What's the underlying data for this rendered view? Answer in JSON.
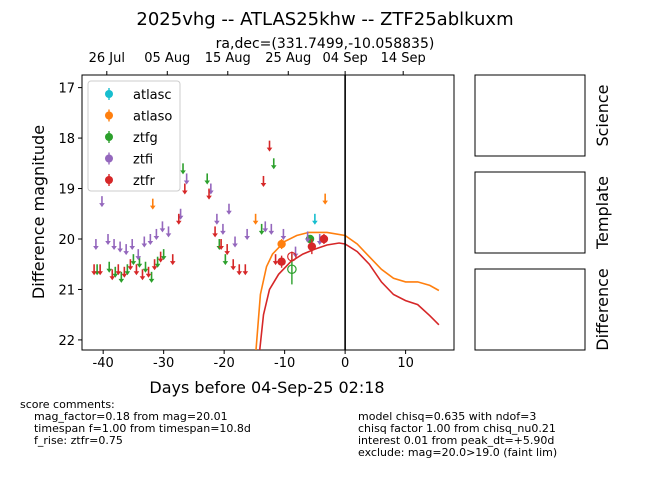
{
  "title": "2025vhg -- ATLAS25khw -- ZTF25ablkuxm",
  "subtitle": "ra,dec=(331.7499,-10.058835)",
  "colors": {
    "atlasc": "#17becf",
    "atlaso": "#ff7f0e",
    "ztfg": "#2ca02c",
    "ztfi": "#9467bd",
    "ztfr": "#d62728"
  },
  "chart_data": {
    "type": "scatter",
    "xlabel": "Days before 04-Sep-25 02:18",
    "ylabel": "Difference magnitude",
    "xlim": [
      -43.5,
      18
    ],
    "ylim": [
      22.2,
      16.75
    ],
    "y_inverted": true,
    "x_ticks": [
      -40,
      -30,
      -20,
      -10,
      0,
      10
    ],
    "y_ticks": [
      17,
      18,
      19,
      20,
      21,
      22
    ],
    "top_axis_ticks": [
      {
        "x": -39.4,
        "label": "26 Jul"
      },
      {
        "x": -29.4,
        "label": "05 Aug"
      },
      {
        "x": -19.4,
        "label": "15 Aug"
      },
      {
        "x": -9.4,
        "label": "25 Aug"
      },
      {
        "x": 0,
        "label": "04 Sep"
      },
      {
        "x": 9.6,
        "label": "14 Sep"
      }
    ],
    "reference_line_x": 0,
    "legend": [
      "atlasc",
      "atlaso",
      "ztfg",
      "ztfi",
      "ztfr"
    ],
    "legend_position": "upper-left",
    "series": [
      {
        "name": "atlasc",
        "upper_limits": [
          {
            "x": -5,
            "y": 19.6
          }
        ],
        "detections": []
      },
      {
        "name": "atlaso",
        "upper_limits": [
          {
            "x": -31.8,
            "y": 19.3
          },
          {
            "x": -14.8,
            "y": 19.6
          },
          {
            "x": -3.3,
            "y": 19.2
          }
        ],
        "detections": [
          {
            "x": -10.5,
            "y": 20.1,
            "err": 0.1
          }
        ]
      },
      {
        "name": "ztfg",
        "upper_limits": [
          {
            "x": -41,
            "y": 20.6
          },
          {
            "x": -39,
            "y": 20.55
          },
          {
            "x": -38,
            "y": 20.65
          },
          {
            "x": -37,
            "y": 20.75
          },
          {
            "x": -36,
            "y": 20.6
          },
          {
            "x": -35,
            "y": 20.4
          },
          {
            "x": -34,
            "y": 20.45
          },
          {
            "x": -33,
            "y": 20.55
          },
          {
            "x": -32,
            "y": 20.75
          },
          {
            "x": -31,
            "y": 20.45
          },
          {
            "x": -30,
            "y": 20.3
          },
          {
            "x": -26.8,
            "y": 18.6
          },
          {
            "x": -22.8,
            "y": 18.8
          },
          {
            "x": -20.8,
            "y": 20.1
          },
          {
            "x": -19.8,
            "y": 20.4
          },
          {
            "x": -13.8,
            "y": 19.8
          },
          {
            "x": -11.8,
            "y": 18.5
          }
        ],
        "detections": [
          {
            "x": -5.8,
            "y": 20.0,
            "err": 0.08
          }
        ],
        "open_markers": [
          {
            "x": -8.8,
            "y": 20.6,
            "err": 0.3
          }
        ]
      },
      {
        "name": "ztfi",
        "upper_limits": [
          {
            "x": -41.2,
            "y": 20.1
          },
          {
            "x": -40.2,
            "y": 19.25
          },
          {
            "x": -39.2,
            "y": 20.0
          },
          {
            "x": -38.2,
            "y": 20.1
          },
          {
            "x": -37.2,
            "y": 20.15
          },
          {
            "x": -36.2,
            "y": 20.2
          },
          {
            "x": -35.2,
            "y": 20.1
          },
          {
            "x": -34.2,
            "y": 20.3
          },
          {
            "x": -33.2,
            "y": 20.05
          },
          {
            "x": -32.2,
            "y": 20.0
          },
          {
            "x": -31.2,
            "y": 19.9
          },
          {
            "x": -30.2,
            "y": 19.75
          },
          {
            "x": -29.2,
            "y": 19.85
          },
          {
            "x": -27.2,
            "y": 19.5
          },
          {
            "x": -26.2,
            "y": 18.8
          },
          {
            "x": -22.2,
            "y": 19.0
          },
          {
            "x": -21.2,
            "y": 19.6
          },
          {
            "x": -20.2,
            "y": 19.8
          },
          {
            "x": -19.2,
            "y": 19.4
          },
          {
            "x": -18.2,
            "y": 20.05
          },
          {
            "x": -16.2,
            "y": 19.9
          },
          {
            "x": -13.2,
            "y": 19.75
          },
          {
            "x": -12.2,
            "y": 19.8
          },
          {
            "x": -10.2,
            "y": 19.9
          },
          {
            "x": -8.2,
            "y": 20.25
          },
          {
            "x": -6.2,
            "y": 19.95
          },
          {
            "x": -4.2,
            "y": 20.0
          }
        ],
        "detections": []
      },
      {
        "name": "ztfr",
        "upper_limits": [
          {
            "x": -41.5,
            "y": 20.6
          },
          {
            "x": -40.5,
            "y": 20.6
          },
          {
            "x": -38.5,
            "y": 20.7
          },
          {
            "x": -37.5,
            "y": 20.6
          },
          {
            "x": -36.5,
            "y": 20.65
          },
          {
            "x": -35.5,
            "y": 20.5
          },
          {
            "x": -34.5,
            "y": 20.6
          },
          {
            "x": -33.5,
            "y": 20.7
          },
          {
            "x": -32.5,
            "y": 20.65
          },
          {
            "x": -31.5,
            "y": 20.5
          },
          {
            "x": -30.5,
            "y": 20.35
          },
          {
            "x": -28.5,
            "y": 20.4
          },
          {
            "x": -27.5,
            "y": 19.6
          },
          {
            "x": -26.5,
            "y": 19.0
          },
          {
            "x": -22.5,
            "y": 19.1
          },
          {
            "x": -21.5,
            "y": 19.85
          },
          {
            "x": -20.5,
            "y": 20.1
          },
          {
            "x": -19.5,
            "y": 20.2
          },
          {
            "x": -18.5,
            "y": 20.5
          },
          {
            "x": -17.5,
            "y": 20.6
          },
          {
            "x": -16.5,
            "y": 20.6
          },
          {
            "x": -13.5,
            "y": 18.85
          },
          {
            "x": -12.5,
            "y": 18.15
          },
          {
            "x": -11.5,
            "y": 20.4
          }
        ],
        "detections": [
          {
            "x": -10.5,
            "y": 20.45,
            "err": 0.12
          },
          {
            "x": -5.5,
            "y": 20.15,
            "err": 0.15
          },
          {
            "x": -3.5,
            "y": 20.0,
            "err": 0.1
          }
        ],
        "open_markers": [
          {
            "x": -8.8,
            "y": 20.35,
            "err": 0.1
          }
        ]
      }
    ],
    "model_curves": [
      {
        "name": "atlaso",
        "points": [
          [
            -14.8,
            22.3
          ],
          [
            -14,
            21.1
          ],
          [
            -13,
            20.55
          ],
          [
            -12,
            20.3
          ],
          [
            -10,
            20.05
          ],
          [
            -8,
            19.93
          ],
          [
            -6,
            19.87
          ],
          [
            -3,
            19.87
          ],
          [
            0,
            19.93
          ],
          [
            2,
            20.1
          ],
          [
            4,
            20.35
          ],
          [
            6,
            20.6
          ],
          [
            8,
            20.78
          ],
          [
            10,
            20.85
          ],
          [
            12,
            20.85
          ],
          [
            14,
            20.92
          ],
          [
            15.5,
            21.02
          ]
        ]
      },
      {
        "name": "ztfr",
        "points": [
          [
            -14.2,
            22.3
          ],
          [
            -13.5,
            21.5
          ],
          [
            -12.5,
            21.0
          ],
          [
            -11,
            20.7
          ],
          [
            -9,
            20.45
          ],
          [
            -7,
            20.3
          ],
          [
            -5,
            20.2
          ],
          [
            -3,
            20.12
          ],
          [
            -1,
            20.08
          ],
          [
            0,
            20.1
          ],
          [
            2,
            20.25
          ],
          [
            4,
            20.5
          ],
          [
            6,
            20.85
          ],
          [
            8,
            21.1
          ],
          [
            10,
            21.22
          ],
          [
            12,
            21.3
          ],
          [
            14,
            21.52
          ],
          [
            15.5,
            21.7
          ]
        ]
      }
    ]
  },
  "thumbnails": [
    "Science",
    "Template",
    "Difference"
  ],
  "score_comments_left": [
    "score comments:",
    "    mag_factor=0.18 from mag=20.01",
    "    timespan f=1.00 from timespan=10.8d",
    "    f_rise: ztfr=0.75"
  ],
  "score_comments_right": [
    "model chisq=0.635 with ndof=3",
    "chisq factor 1.00 from chisq_nu0.21",
    "interest 0.01 from peak_dt=+5.90d",
    "exclude: mag=20.0>19.0 (faint lim)"
  ]
}
